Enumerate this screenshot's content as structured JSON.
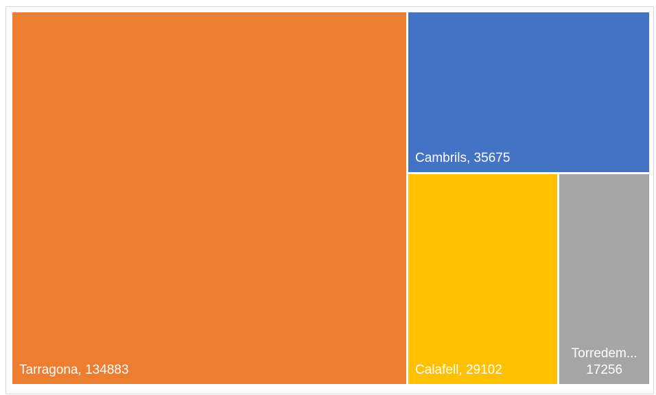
{
  "chart_data": {
    "type": "treemap",
    "title": "",
    "items": [
      {
        "name": "Tarragona",
        "value": 134883,
        "label": "Tarragona, 134883",
        "color": "#ED7D31"
      },
      {
        "name": "Cambrils",
        "value": 35675,
        "label": "Cambrils, 35675",
        "color": "#4472C4"
      },
      {
        "name": "Calafell",
        "value": 29102,
        "label": "Calafell, 29102",
        "color": "#FFC000"
      },
      {
        "name": "Torredembarra",
        "value": 17256,
        "label_line1": "Torredem...",
        "label_line2": "17256",
        "color": "#A5A5A5"
      }
    ]
  }
}
